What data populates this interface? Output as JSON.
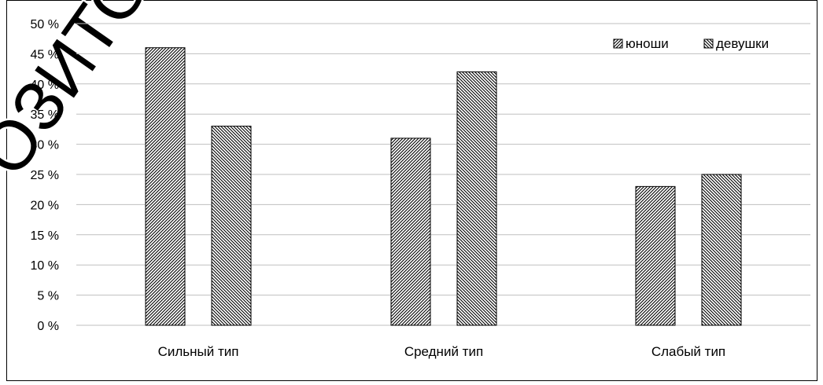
{
  "chart_data": {
    "type": "bar",
    "categories": [
      "Сильный тип",
      "Средний тип",
      "Слабый тип"
    ],
    "series": [
      {
        "name": "юноши",
        "values": [
          46,
          31,
          23
        ]
      },
      {
        "name": "девушки",
        "values": [
          33,
          42,
          25
        ]
      }
    ],
    "yticks": [
      "0 %",
      "5 %",
      "10 %",
      "15 %",
      "20 %",
      "25 %",
      "30 %",
      "35 %",
      "40 %",
      "45 %",
      "50 %"
    ],
    "ylim": [
      0,
      50
    ],
    "grid": true,
    "legend_position": "top-right",
    "title": "",
    "xlabel": "",
    "ylabel": "",
    "watermark": "ОЗИТО"
  }
}
